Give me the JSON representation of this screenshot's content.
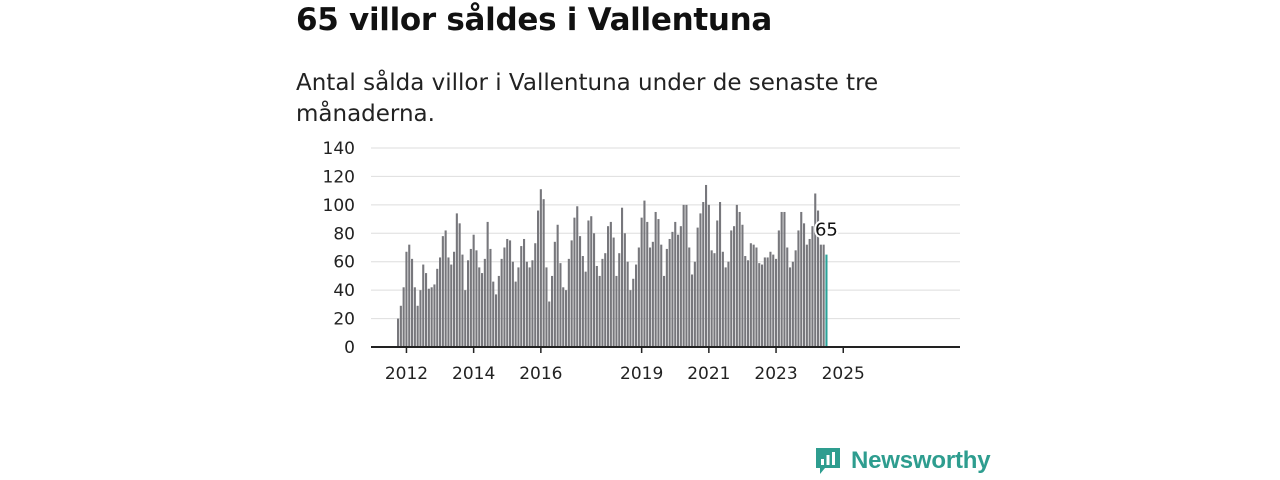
{
  "title": "65 villor såldes i Vallentuna",
  "subtitle": "Antal sålda villor i Vallentuna under de senaste tre månaderna.",
  "brand": {
    "name": "Newsworthy",
    "icon": "newsworthy-logo-icon",
    "color": "#2e9d8f"
  },
  "chart_data": {
    "type": "bar",
    "title": "",
    "xlabel": "",
    "ylabel": "",
    "ylim": [
      0,
      140
    ],
    "y_ticks": [
      0,
      20,
      40,
      60,
      80,
      100,
      120,
      140
    ],
    "x_tick_labels": [
      "2012",
      "2014",
      "2016",
      "2019",
      "2021",
      "2023",
      "2025"
    ],
    "x_tick_years": [
      2012,
      2014,
      2016,
      2019,
      2021,
      2023,
      2025
    ],
    "start": "2011-10",
    "end": "2025-02",
    "grid": true,
    "bar_color": "#77777c",
    "highlight_color": "#2aa198",
    "highlight_label": "65",
    "values": [
      20,
      29,
      42,
      67,
      72,
      62,
      42,
      29,
      40,
      58,
      52,
      41,
      42,
      44,
      55,
      63,
      78,
      82,
      63,
      58,
      67,
      94,
      87,
      65,
      40,
      61,
      69,
      79,
      68,
      56,
      52,
      62,
      88,
      69,
      46,
      37,
      50,
      62,
      70,
      76,
      75,
      60,
      46,
      56,
      71,
      76,
      60,
      56,
      61,
      73,
      96,
      111,
      104,
      56,
      32,
      50,
      74,
      86,
      59,
      42,
      40,
      62,
      75,
      91,
      99,
      78,
      64,
      53,
      89,
      92,
      80,
      57,
      50,
      62,
      66,
      85,
      88,
      77,
      50,
      66,
      98,
      80,
      60,
      40,
      48,
      58,
      70,
      91,
      103,
      88,
      70,
      74,
      95,
      90,
      72,
      50,
      69,
      76,
      81,
      88,
      79,
      85,
      100,
      100,
      70,
      51,
      60,
      84,
      94,
      102,
      114,
      100,
      68,
      66,
      89,
      102,
      67,
      56,
      60,
      82,
      85,
      100,
      95,
      86,
      64,
      61,
      73,
      72,
      70,
      59,
      58,
      63,
      63,
      67,
      65,
      62,
      82,
      95,
      95,
      70,
      56,
      60,
      68,
      82,
      95,
      87,
      72,
      76,
      85,
      108,
      96,
      72,
      72,
      65
    ]
  }
}
